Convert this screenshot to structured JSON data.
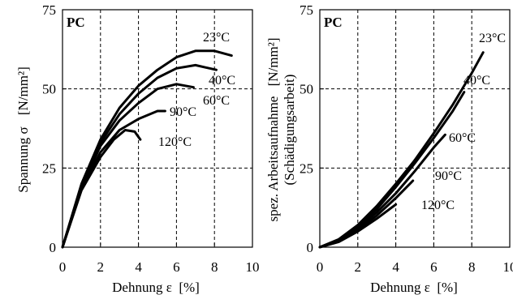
{
  "chart_data": [
    {
      "type": "line",
      "panel_label": "PC",
      "ylabel_main": "Spannung σ",
      "ylabel_unit": "[N/mm²]",
      "xlabel": "Dehnung ε  [%]",
      "xlim": [
        0,
        10
      ],
      "ylim": [
        0,
        75
      ],
      "xticks": [
        "0",
        "2",
        "4",
        "6",
        "8",
        "10"
      ],
      "yticks": [
        "0",
        "25",
        "50",
        "75"
      ],
      "grid": true,
      "series": [
        {
          "name": "23°C",
          "x": [
            0,
            1,
            2,
            3,
            4,
            5,
            6,
            7,
            8,
            8.9
          ],
          "y": [
            0,
            20,
            34,
            44,
            51,
            56,
            60,
            62,
            62,
            60.5
          ]
        },
        {
          "name": "40°C",
          "x": [
            0,
            1,
            2,
            3,
            4,
            5,
            6,
            7,
            8.1
          ],
          "y": [
            0,
            19.5,
            33,
            42,
            48.5,
            53.5,
            56.5,
            57.5,
            56
          ]
        },
        {
          "name": "60°C",
          "x": [
            0,
            1,
            2,
            3,
            4,
            5,
            6,
            6.9
          ],
          "y": [
            0,
            19,
            32,
            40,
            45.5,
            50,
            51.5,
            50.5
          ]
        },
        {
          "name": "90°C",
          "x": [
            0,
            1,
            2,
            3,
            4,
            5,
            5.4
          ],
          "y": [
            0,
            18.5,
            30,
            37,
            40.5,
            43,
            43
          ]
        },
        {
          "name": "120°C",
          "x": [
            0,
            1,
            2,
            2.7,
            3.3,
            3.8,
            4.1
          ],
          "y": [
            0,
            18,
            28.5,
            34,
            37,
            36.5,
            34
          ]
        }
      ]
    },
    {
      "type": "line",
      "panel_label": "PC",
      "ylabel_main": "spez. Arbeitsaufnahme",
      "ylabel_unit": "[N/mm²]",
      "ylabel_sub": "(Schädigungsarbeit)",
      "xlabel": "Dehnung ε  [%]",
      "xlim": [
        0,
        10
      ],
      "ylim": [
        0,
        75
      ],
      "xticks": [
        "0",
        "2",
        "4",
        "6",
        "8",
        "10"
      ],
      "yticks": [
        "0",
        "25",
        "50",
        "75"
      ],
      "grid": true,
      "series": [
        {
          "name": "23°C",
          "x": [
            0,
            1,
            2,
            3,
            4,
            5,
            6,
            7,
            8,
            8.6
          ],
          "y": [
            0,
            2.5,
            7,
            13,
            20,
            27.5,
            36,
            45,
            55,
            61.5
          ]
        },
        {
          "name": "40°C",
          "x": [
            0,
            1,
            2,
            3,
            4,
            5,
            6,
            7,
            7.6
          ],
          "y": [
            0,
            2.3,
            6.5,
            12,
            19,
            26.5,
            34.5,
            43,
            49
          ]
        },
        {
          "name": "60°C",
          "x": [
            0,
            1,
            2,
            3,
            4,
            5,
            6,
            6.6
          ],
          "y": [
            0,
            2.1,
            6,
            11,
            17,
            24,
            31.5,
            35.5
          ]
        },
        {
          "name": "90°C",
          "x": [
            0,
            1,
            2,
            3,
            4,
            4.9
          ],
          "y": [
            0,
            1.9,
            5.5,
            10,
            15.5,
            21
          ]
        },
        {
          "name": "120°C",
          "x": [
            0,
            1,
            2,
            3,
            4
          ],
          "y": [
            0,
            1.7,
            5,
            9,
            13.5
          ]
        }
      ]
    }
  ]
}
